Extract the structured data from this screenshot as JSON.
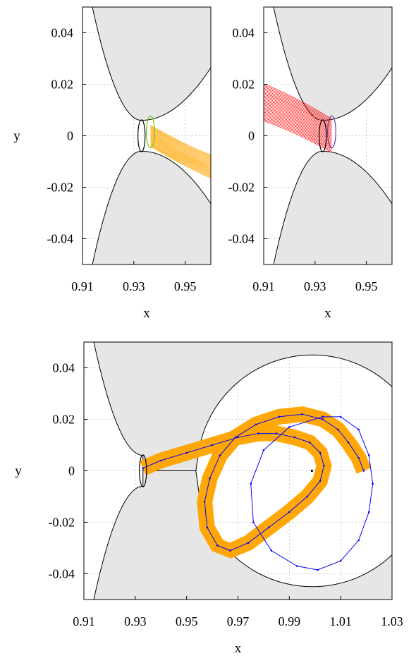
{
  "chart_data": [
    {
      "type": "line",
      "panel": "top-left",
      "xlabel": "x",
      "ylabel": "y",
      "xlim": [
        0.91,
        0.96
      ],
      "ylim": [
        -0.05,
        0.05
      ],
      "xticks": [
        "0.91",
        "0.93",
        "0.95"
      ],
      "yticks": [
        "0.04",
        "0.02",
        "0",
        "-0.02",
        "-0.04"
      ],
      "grid": true,
      "tube": {
        "color": "#ffa500",
        "from": [
          0.9365,
          0.0
        ],
        "to": [
          0.96,
          -0.012
        ],
        "half_width": 0.0045
      },
      "neck_ellipse": {
        "center": [
          0.933,
          0.0
        ],
        "rx": 0.0014,
        "ry": 0.0062,
        "color": "#000000"
      },
      "end_ellipse": {
        "center": [
          0.9365,
          0.0015
        ],
        "rx": 0.0016,
        "ry": 0.0062,
        "color": "#66cc00"
      }
    },
    {
      "type": "line",
      "panel": "top-right",
      "xlabel": "x",
      "ylabel": "",
      "xlim": [
        0.91,
        0.96
      ],
      "ylim": [
        -0.05,
        0.05
      ],
      "xticks": [
        "0.91",
        "0.93",
        "0.95"
      ],
      "yticks": [
        "0.04",
        "0.02",
        "0",
        "-0.02",
        "-0.04"
      ],
      "grid": true,
      "tube": {
        "color": "#ff0000",
        "from": [
          0.9365,
          0.0
        ],
        "to": [
          0.91,
          0.013
        ],
        "half_width": 0.0072
      },
      "neck_ellipse": {
        "center": [
          0.933,
          0.0
        ],
        "rx": 0.0014,
        "ry": 0.0062,
        "color": "#000000"
      },
      "end_ellipse": {
        "center": [
          0.9365,
          0.0015
        ],
        "rx": 0.0016,
        "ry": 0.0062,
        "color": "#7030a0"
      }
    },
    {
      "type": "line",
      "panel": "bottom",
      "xlabel": "x",
      "ylabel": "y",
      "xlim": [
        0.91,
        1.03
      ],
      "ylim": [
        -0.05,
        0.05
      ],
      "xticks": [
        "0.91",
        "0.93",
        "0.95",
        "0.97",
        "0.99",
        "1.01",
        "1.03"
      ],
      "yticks": [
        "0.04",
        "0.02",
        "0",
        "-0.02",
        "-0.04"
      ],
      "grid": true,
      "series": [
        {
          "color": "#0000ff",
          "points": [
            [
              0.933,
              0.001
            ],
            [
              0.94,
              0.004
            ],
            [
              0.95,
              0.007
            ],
            [
              0.96,
              0.01
            ],
            [
              0.97,
              0.013
            ],
            [
              0.978,
              0.0145
            ],
            [
              0.985,
              0.0145
            ],
            [
              0.992,
              0.013
            ],
            [
              0.998,
              0.011
            ],
            [
              1.002,
              0.007
            ],
            [
              1.0035,
              0.002
            ],
            [
              1.002,
              -0.004
            ],
            [
              0.997,
              -0.01
            ],
            [
              0.99,
              -0.016
            ],
            [
              0.982,
              -0.022
            ],
            [
              0.974,
              -0.028
            ],
            [
              0.967,
              -0.031
            ],
            [
              0.962,
              -0.029
            ],
            [
              0.958,
              -0.022
            ],
            [
              0.957,
              -0.012
            ],
            [
              0.959,
              -0.003
            ],
            [
              0.963,
              0.006
            ],
            [
              0.969,
              0.013
            ],
            [
              0.977,
              0.018
            ],
            [
              0.986,
              0.021
            ],
            [
              0.995,
              0.022
            ],
            [
              1.003,
              0.02
            ],
            [
              1.009,
              0.016
            ],
            [
              1.013,
              0.011
            ],
            [
              1.017,
              0.005
            ],
            [
              1.019,
              0.0
            ]
          ]
        },
        {
          "color": "#0000ff",
          "points": [
            [
              1.003,
              0.021
            ],
            [
              0.99,
              0.017
            ],
            [
              0.98,
              0.008
            ],
            [
              0.975,
              -0.005
            ],
            [
              0.976,
              -0.02
            ],
            [
              0.983,
              -0.031
            ],
            [
              0.993,
              -0.037
            ],
            [
              1.001,
              -0.0385
            ],
            [
              1.01,
              -0.035
            ],
            [
              1.017,
              -0.027
            ],
            [
              1.021,
              -0.016
            ],
            [
              1.0225,
              -0.005
            ],
            [
              1.021,
              0.006
            ],
            [
              1.017,
              0.016
            ],
            [
              1.01,
              0.021
            ],
            [
              1.003,
              0.021
            ]
          ]
        }
      ],
      "tube": {
        "color": "#ffa500",
        "half_width": 0.003
      },
      "neck_ellipse": {
        "center": [
          0.933,
          0.0
        ],
        "rx": 0.0014,
        "ry": 0.0062,
        "color": "#000000"
      },
      "center_point": [
        0.9988,
        0.0
      ]
    }
  ]
}
